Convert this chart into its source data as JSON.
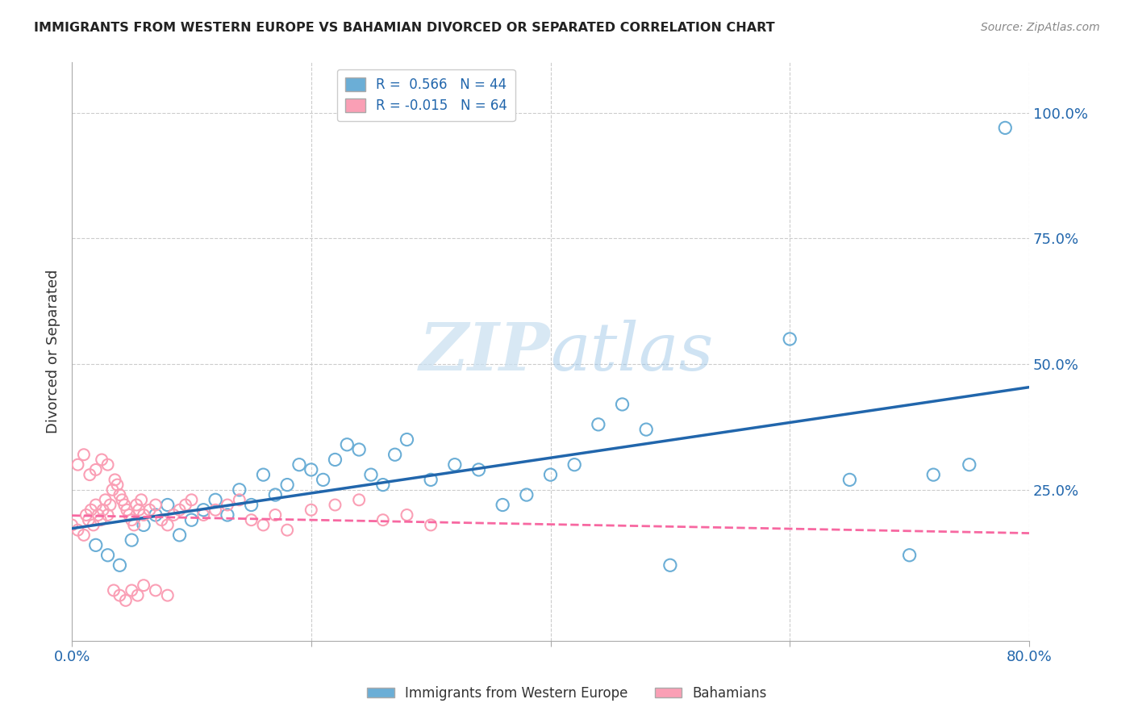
{
  "title": "IMMIGRANTS FROM WESTERN EUROPE VS BAHAMIAN DIVORCED OR SEPARATED CORRELATION CHART",
  "source": "Source: ZipAtlas.com",
  "ylabel": "Divorced or Separated",
  "xlim": [
    0.0,
    0.8
  ],
  "ylim": [
    -0.05,
    1.1
  ],
  "legend_blue_label": "Immigrants from Western Europe",
  "legend_pink_label": "Bahamians",
  "R_blue": "0.566",
  "N_blue": "44",
  "R_pink": "-0.015",
  "N_pink": "64",
  "blue_color": "#6baed6",
  "pink_color": "#fa9fb5",
  "line_blue_color": "#2166ac",
  "line_pink_color": "#f768a1",
  "watermark_zip": "ZIP",
  "watermark_atlas": "atlas",
  "blue_scatter_x": [
    0.02,
    0.03,
    0.04,
    0.05,
    0.06,
    0.07,
    0.08,
    0.09,
    0.1,
    0.11,
    0.12,
    0.13,
    0.14,
    0.15,
    0.16,
    0.17,
    0.18,
    0.19,
    0.2,
    0.21,
    0.22,
    0.23,
    0.24,
    0.25,
    0.26,
    0.27,
    0.28,
    0.3,
    0.32,
    0.34,
    0.36,
    0.38,
    0.4,
    0.42,
    0.44,
    0.46,
    0.48,
    0.5,
    0.6,
    0.65,
    0.7,
    0.72,
    0.75,
    0.78
  ],
  "blue_scatter_y": [
    0.14,
    0.12,
    0.1,
    0.15,
    0.18,
    0.2,
    0.22,
    0.16,
    0.19,
    0.21,
    0.23,
    0.2,
    0.25,
    0.22,
    0.28,
    0.24,
    0.26,
    0.3,
    0.29,
    0.27,
    0.31,
    0.34,
    0.33,
    0.28,
    0.26,
    0.32,
    0.35,
    0.27,
    0.3,
    0.29,
    0.22,
    0.24,
    0.28,
    0.3,
    0.38,
    0.42,
    0.37,
    0.1,
    0.55,
    0.27,
    0.12,
    0.28,
    0.3,
    0.97
  ],
  "pink_scatter_x": [
    0.0,
    0.005,
    0.01,
    0.012,
    0.014,
    0.016,
    0.018,
    0.02,
    0.022,
    0.024,
    0.026,
    0.028,
    0.03,
    0.032,
    0.034,
    0.036,
    0.038,
    0.04,
    0.042,
    0.044,
    0.046,
    0.048,
    0.05,
    0.052,
    0.054,
    0.056,
    0.058,
    0.06,
    0.065,
    0.07,
    0.075,
    0.08,
    0.085,
    0.09,
    0.095,
    0.1,
    0.11,
    0.12,
    0.13,
    0.14,
    0.15,
    0.16,
    0.17,
    0.18,
    0.2,
    0.22,
    0.24,
    0.26,
    0.28,
    0.3,
    0.005,
    0.01,
    0.015,
    0.02,
    0.025,
    0.03,
    0.035,
    0.04,
    0.045,
    0.05,
    0.055,
    0.06,
    0.07,
    0.08
  ],
  "pink_scatter_y": [
    0.18,
    0.17,
    0.16,
    0.2,
    0.19,
    0.21,
    0.18,
    0.22,
    0.2,
    0.19,
    0.21,
    0.23,
    0.2,
    0.22,
    0.25,
    0.27,
    0.26,
    0.24,
    0.23,
    0.22,
    0.21,
    0.2,
    0.19,
    0.18,
    0.22,
    0.21,
    0.23,
    0.2,
    0.21,
    0.22,
    0.19,
    0.18,
    0.2,
    0.21,
    0.22,
    0.23,
    0.2,
    0.21,
    0.22,
    0.23,
    0.19,
    0.18,
    0.2,
    0.17,
    0.21,
    0.22,
    0.23,
    0.19,
    0.2,
    0.18,
    0.3,
    0.32,
    0.28,
    0.29,
    0.31,
    0.3,
    0.05,
    0.04,
    0.03,
    0.05,
    0.04,
    0.06,
    0.05,
    0.04
  ]
}
